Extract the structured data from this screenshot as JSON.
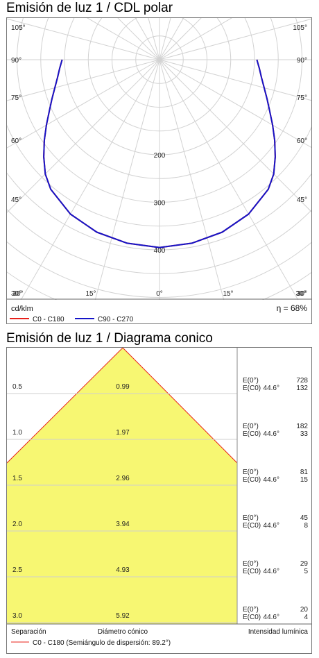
{
  "polar": {
    "title": "Emisión de luz 1 / CDL polar",
    "unit_label": "cd/klm",
    "efficiency": "η = 68%",
    "legend": [
      {
        "label": "C0 - C180",
        "color": "#e8201a"
      },
      {
        "label": "C90 - C270",
        "color": "#1515c8"
      }
    ],
    "angle_labels": {
      "left": [
        "105°",
        "90°",
        "75°",
        "60°",
        "45°",
        "30°"
      ],
      "right": [
        "105°",
        "90°",
        "75°",
        "60°",
        "45°",
        "30°"
      ],
      "bottom": [
        "30°",
        "15°",
        "0°",
        "15°",
        "30°"
      ]
    },
    "radial_labels": [
      "200",
      "300",
      "400"
    ]
  },
  "cone": {
    "title": "Emisión de luz 1 / Diagrama conico",
    "footer": {
      "separation_label": "Separación",
      "diameter_label": "Diámetro cónico",
      "intensity_label": "Intensidad lumínica",
      "legend_label": "C0 - C180 (Semiángulo de dispersión: 89.2°)",
      "legend_color": "#e8201a"
    },
    "rows": [
      {
        "sep": "0.5",
        "diameter": "0.99",
        "e0_label": "E(0°)",
        "e0": "728",
        "ec0_label": "E(C0)",
        "angle": "44.6°",
        "ec0": "132"
      },
      {
        "sep": "1.0",
        "diameter": "1.97",
        "e0_label": "E(0°)",
        "e0": "182",
        "ec0_label": "E(C0)",
        "angle": "44.6°",
        "ec0": "33"
      },
      {
        "sep": "1.5",
        "diameter": "2.96",
        "e0_label": "E(0°)",
        "e0": "81",
        "ec0_label": "E(C0)",
        "angle": "44.6°",
        "ec0": "15"
      },
      {
        "sep": "2.0",
        "diameter": "3.94",
        "e0_label": "E(0°)",
        "e0": "45",
        "ec0_label": "E(C0)",
        "angle": "44.6°",
        "ec0": "8"
      },
      {
        "sep": "2.5",
        "diameter": "4.93",
        "e0_label": "E(0°)",
        "e0": "29",
        "ec0_label": "E(C0)",
        "angle": "44.6°",
        "ec0": "5"
      },
      {
        "sep": "3.0",
        "diameter": "5.92",
        "e0_label": "E(0°)",
        "e0": "20",
        "ec0_label": "E(C0)",
        "angle": "44.6°",
        "ec0": "4"
      }
    ],
    "fill_color": "#f7f772"
  },
  "chart_data": [
    {
      "type": "polar",
      "title": "Emisión de luz 1 / CDL polar",
      "unit": "cd/klm",
      "radial_ticks": [
        200,
        300,
        400
      ],
      "angle_ticks": [
        0,
        15,
        30,
        45,
        60,
        75,
        90,
        105
      ],
      "series": [
        {
          "name": "C90 - C270",
          "angles": [
            0,
            10,
            20,
            30,
            40,
            45,
            50,
            55,
            60,
            65,
            70,
            75,
            80,
            85,
            90
          ],
          "values": [
            395,
            392,
            386,
            375,
            356,
            340,
            318,
            296,
            275,
            256,
            241,
            228,
            218,
            211,
            205
          ]
        },
        {
          "name": "C0 - C180",
          "angles": [
            0,
            10,
            20,
            30,
            40,
            45,
            50,
            55,
            60,
            65,
            70,
            75,
            80,
            85,
            90
          ],
          "values": [
            395,
            392,
            386,
            375,
            356,
            340,
            318,
            296,
            275,
            256,
            241,
            228,
            218,
            211,
            205
          ]
        }
      ]
    },
    {
      "type": "table",
      "title": "Emisión de luz 1 / Diagrama conico",
      "half_angle_deg": 89.2,
      "columns": [
        "Separación",
        "Diámetro cónico",
        "E(0°)",
        "E(C0)"
      ],
      "rows": [
        [
          0.5,
          0.99,
          728,
          132
        ],
        [
          1.0,
          1.97,
          182,
          33
        ],
        [
          1.5,
          2.96,
          81,
          15
        ],
        [
          2.0,
          3.94,
          45,
          8
        ],
        [
          2.5,
          4.93,
          29,
          5
        ],
        [
          3.0,
          5.92,
          20,
          4
        ]
      ]
    }
  ]
}
